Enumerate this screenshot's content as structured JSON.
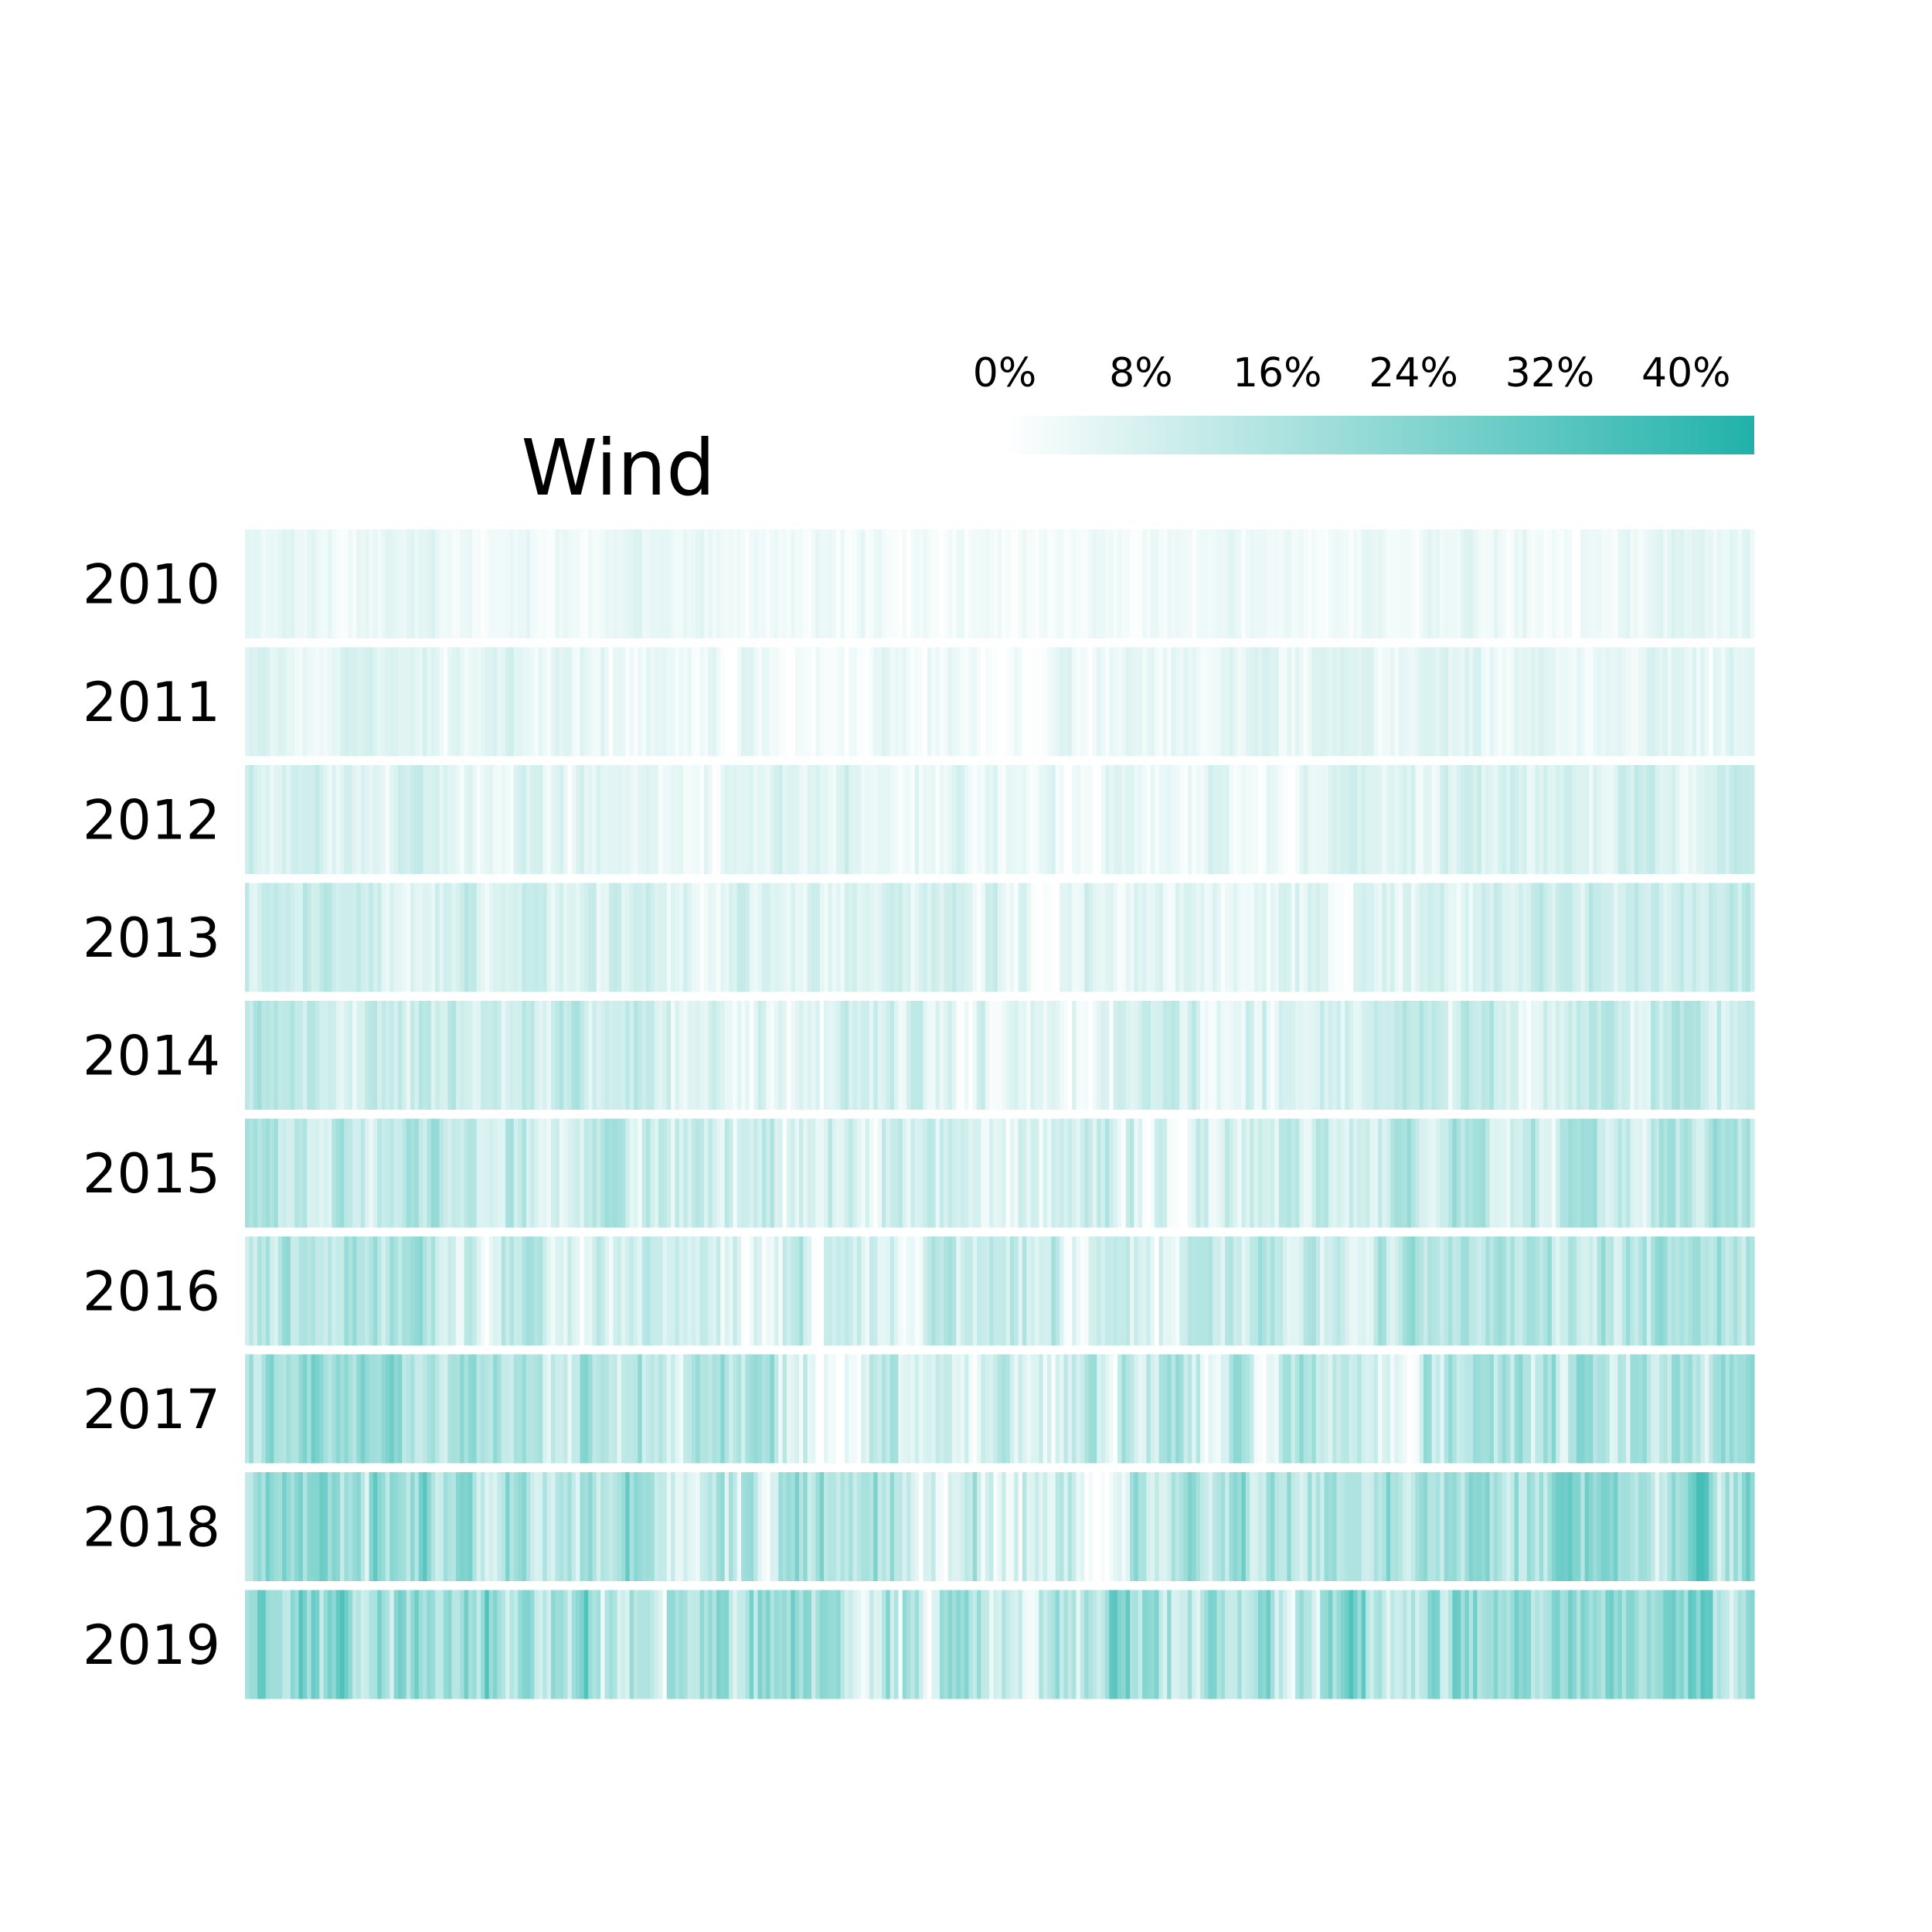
{
  "chart_data": {
    "type": "heatmap",
    "title": "Wind",
    "rows": [
      "2010",
      "2011",
      "2012",
      "2013",
      "2014",
      "2015",
      "2016",
      "2017",
      "2018",
      "2019"
    ],
    "cells_per_row": 365,
    "value_range": [
      0,
      44
    ],
    "value_unit": "%",
    "colorbar": {
      "ticks": [
        0,
        8,
        16,
        24,
        32,
        40
      ],
      "tick_labels": [
        "0%",
        "8%",
        "16%",
        "24%",
        "32%",
        "40%"
      ]
    },
    "colors": {
      "low": "#ffffff",
      "high": "#20b2aa"
    },
    "row_mean_share_pct": [
      3.5,
      4.5,
      6.0,
      7.5,
      9.0,
      10.5,
      11.0,
      13.0,
      15.5,
      17.5
    ]
  }
}
